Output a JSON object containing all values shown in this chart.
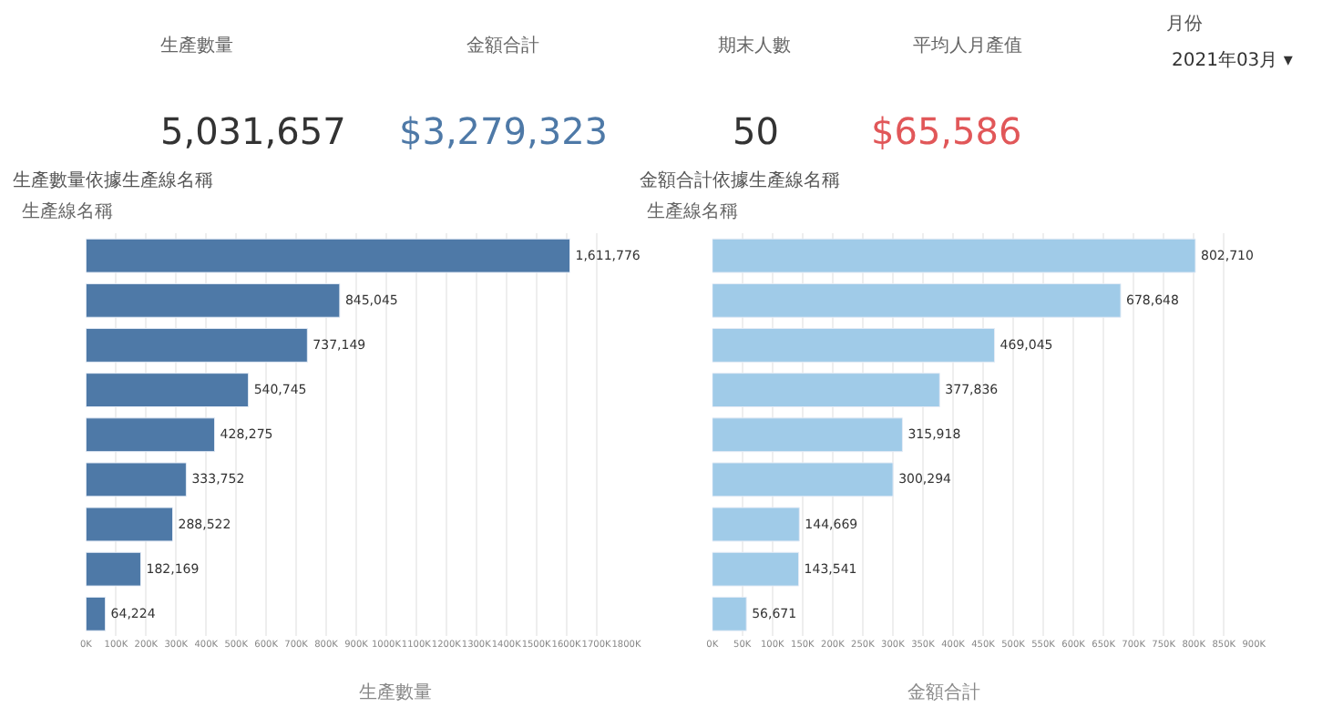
{
  "chart_data": [
    {
      "type": "other",
      "annotations": [
        "生產數量",
        "5,031,657",
        "金額合計",
        "$3,279,323",
        "期末人數",
        "50",
        "平均人月產值",
        "$65,586",
        "月份",
        "2021年03月 ▾"
      ],
      "colors": [
        "#666666",
        "#333333",
        "#666666",
        "#4e79a7",
        "#666666",
        "#333333",
        "#666666",
        "#e15759",
        "#555555",
        "#333333"
      ]
    },
    {
      "type": "bar",
      "orientation": "horizontal",
      "title": "生產數量依據生產線名稱",
      "ylabel": "生產線名稱",
      "xlabel": "生產數量",
      "color": "#4e79a7",
      "grid": "x",
      "value_labels": [
        "1,611,776",
        "845,045",
        "737,149",
        "540,745",
        "428,275",
        "333,752",
        "288,522",
        "182,169",
        "64,224"
      ],
      "categories": [
        null,
        null,
        null,
        null,
        null,
        null,
        null,
        null,
        null
      ],
      "values": [
        1611776,
        845045,
        737149,
        540745,
        428275,
        333752,
        288522,
        182169,
        64224
      ],
      "xlim": [
        0,
        1800000
      ],
      "xticks": [
        {
          "value": 0,
          "label": "0K"
        },
        {
          "value": 100000,
          "label": "100K"
        },
        {
          "value": 200000,
          "label": "200K"
        },
        {
          "value": 300000,
          "label": "300K"
        },
        {
          "value": 400000,
          "label": "400K"
        },
        {
          "value": 500000,
          "label": "500K"
        },
        {
          "value": 600000,
          "label": "600K"
        },
        {
          "value": 700000,
          "label": "700K"
        },
        {
          "value": 800000,
          "label": "800K"
        },
        {
          "value": 900000,
          "label": "900K"
        },
        {
          "value": 1000000,
          "label": "1000K"
        },
        {
          "value": 1100000,
          "label": "1100K"
        },
        {
          "value": 1200000,
          "label": "1200K"
        },
        {
          "value": 1300000,
          "label": "1300K"
        },
        {
          "value": 1400000,
          "label": "1400K"
        },
        {
          "value": 1500000,
          "label": "1500K"
        },
        {
          "value": 1600000,
          "label": "1600K"
        },
        {
          "value": 1700000,
          "label": "1700K"
        },
        {
          "value": 1800000,
          "label": "1800K"
        }
      ]
    },
    {
      "type": "bar",
      "orientation": "horizontal",
      "title": "金額合計依據生產線名稱",
      "ylabel": "生產線名稱",
      "xlabel": "金額合計",
      "color": "#a0cbe8",
      "grid": "x",
      "value_labels": [
        "802,710",
        "678,648",
        "469,045",
        "377,836",
        "315,918",
        "300,294",
        "144,669",
        "143,541",
        "56,671"
      ],
      "categories": [
        null,
        null,
        null,
        null,
        null,
        null,
        null,
        null,
        null
      ],
      "values": [
        802710,
        678648,
        469045,
        377836,
        315918,
        300294,
        144669,
        143541,
        56671
      ],
      "xlim": [
        0,
        900000
      ],
      "xticks": [
        {
          "value": 0,
          "label": "0K"
        },
        {
          "value": 50000,
          "label": "50K"
        },
        {
          "value": 100000,
          "label": "100K"
        },
        {
          "value": 150000,
          "label": "150K"
        },
        {
          "value": 200000,
          "label": "200K"
        },
        {
          "value": 250000,
          "label": "250K"
        },
        {
          "value": 300000,
          "label": "300K"
        },
        {
          "value": 350000,
          "label": "350K"
        },
        {
          "value": 400000,
          "label": "400K"
        },
        {
          "value": 450000,
          "label": "450K"
        },
        {
          "value": 500000,
          "label": "500K"
        },
        {
          "value": 550000,
          "label": "550K"
        },
        {
          "value": 600000,
          "label": "600K"
        },
        {
          "value": 650000,
          "label": "650K"
        },
        {
          "value": 700000,
          "label": "700K"
        },
        {
          "value": 750000,
          "label": "750K"
        },
        {
          "value": 800000,
          "label": "800K"
        },
        {
          "value": 850000,
          "label": "850K"
        },
        {
          "value": 900000,
          "label": "900K"
        }
      ]
    }
  ]
}
